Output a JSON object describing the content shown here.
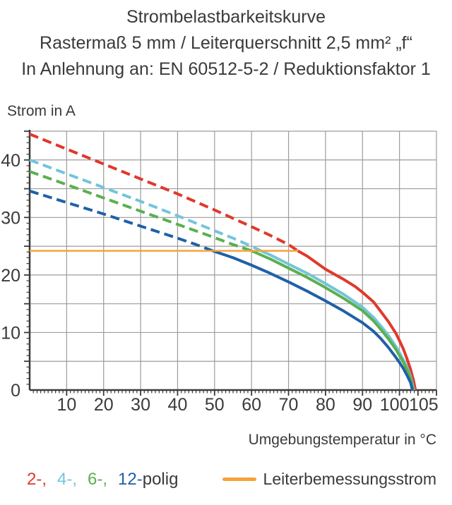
{
  "title": {
    "line1": "Strombelastbarkeitskurve",
    "line2": "Rastermaß 5 mm / Leiterquerschnitt 2,5 mm² „f“",
    "line3": "In Anlehnung an: EN 60512-5-2 / Reduktionsfaktor 1"
  },
  "colors": {
    "text": "#3a3a39",
    "grid": "#9c9c9b",
    "axis": "#3a3a39",
    "pole2": "#e0392b",
    "pole4": "#72c5db",
    "pole6": "#5bb04e",
    "pole12": "#1f60a8",
    "rated": "#f5a33a"
  },
  "chart_data": {
    "type": "line",
    "title": "Strombelastbarkeitskurve",
    "xlabel": "Umgebungstemperatur in °C",
    "ylabel": "Strom in A",
    "xlim": [
      0,
      110
    ],
    "ylim": [
      0,
      45
    ],
    "x_grid_step": 10,
    "y_grid_step": 5,
    "x_tick_labels": [
      10,
      20,
      30,
      40,
      50,
      60,
      70,
      80,
      90,
      100,
      105
    ],
    "y_tick_labels": [
      0,
      10,
      20,
      30,
      40
    ],
    "grid": true,
    "legend_position": "bottom",
    "series": [
      {
        "name": "2-polig",
        "color": "#e0392b",
        "width": 4,
        "segments": [
          {
            "style": "dashed",
            "points": [
              [
                0,
                44.5
              ],
              [
                10,
                41.9
              ],
              [
                20,
                39.3
              ],
              [
                30,
                36.7
              ],
              [
                40,
                34.1
              ],
              [
                50,
                31.3
              ],
              [
                60,
                28.4
              ],
              [
                65,
                26.9
              ],
              [
                70,
                25.3
              ],
              [
                72.5,
                24.2
              ]
            ]
          },
          {
            "style": "solid",
            "points": [
              [
                72.5,
                24.2
              ],
              [
                75,
                23.3
              ],
              [
                80,
                21.0
              ],
              [
                85,
                19.2
              ],
              [
                88,
                18.0
              ],
              [
                90,
                17.0
              ],
              [
                93,
                15.3
              ],
              [
                95,
                13.6
              ],
              [
                97,
                11.9
              ],
              [
                99,
                9.9
              ],
              [
                100,
                8.6
              ],
              [
                101,
                7.2
              ],
              [
                102,
                5.5
              ],
              [
                103,
                3.6
              ],
              [
                103.8,
                1.7
              ],
              [
                104.3,
                0
              ]
            ]
          }
        ]
      },
      {
        "name": "4-polig",
        "color": "#72c5db",
        "width": 4,
        "segments": [
          {
            "style": "dashed",
            "points": [
              [
                0,
                40.0
              ],
              [
                10,
                37.6
              ],
              [
                20,
                35.2
              ],
              [
                30,
                32.8
              ],
              [
                40,
                30.3
              ],
              [
                50,
                27.7
              ],
              [
                55,
                26.4
              ],
              [
                60,
                25.0
              ],
              [
                62.5,
                24.2
              ]
            ]
          },
          {
            "style": "solid",
            "points": [
              [
                62.5,
                24.2
              ],
              [
                65,
                23.5
              ],
              [
                70,
                21.9
              ],
              [
                75,
                20.3
              ],
              [
                80,
                18.5
              ],
              [
                85,
                16.6
              ],
              [
                90,
                14.4
              ],
              [
                93,
                12.6
              ],
              [
                95,
                11.1
              ],
              [
                97,
                9.5
              ],
              [
                99,
                7.6
              ],
              [
                100,
                6.5
              ],
              [
                101,
                5.3
              ],
              [
                102,
                4.0
              ],
              [
                103,
                2.4
              ],
              [
                103.9,
                0
              ]
            ]
          }
        ]
      },
      {
        "name": "6-polig",
        "color": "#5bb04e",
        "width": 4,
        "segments": [
          {
            "style": "dashed",
            "points": [
              [
                0,
                38.0
              ],
              [
                10,
                35.7
              ],
              [
                20,
                33.4
              ],
              [
                30,
                31.1
              ],
              [
                40,
                28.8
              ],
              [
                50,
                26.5
              ],
              [
                55,
                25.3
              ],
              [
                60,
                24.2
              ]
            ]
          },
          {
            "style": "solid",
            "points": [
              [
                60,
                24.2
              ],
              [
                65,
                22.8
              ],
              [
                70,
                21.2
              ],
              [
                75,
                19.6
              ],
              [
                80,
                17.8
              ],
              [
                85,
                15.9
              ],
              [
                90,
                13.8
              ],
              [
                93,
                12.0
              ],
              [
                95,
                10.5
              ],
              [
                97,
                8.9
              ],
              [
                99,
                7.1
              ],
              [
                100,
                6.0
              ],
              [
                101,
                4.9
              ],
              [
                102,
                3.6
              ],
              [
                103,
                2.1
              ],
              [
                103.7,
                0
              ]
            ]
          }
        ]
      },
      {
        "name": "12-polig",
        "color": "#1f60a8",
        "width": 4,
        "segments": [
          {
            "style": "dashed",
            "points": [
              [
                0,
                34.6
              ],
              [
                10,
                32.6
              ],
              [
                20,
                30.6
              ],
              [
                30,
                28.5
              ],
              [
                40,
                26.4
              ],
              [
                45,
                25.3
              ],
              [
                49.5,
                24.2
              ]
            ]
          },
          {
            "style": "solid",
            "points": [
              [
                49.5,
                24.2
              ],
              [
                55,
                23.0
              ],
              [
                60,
                21.7
              ],
              [
                65,
                20.3
              ],
              [
                70,
                18.8
              ],
              [
                75,
                17.2
              ],
              [
                80,
                15.5
              ],
              [
                85,
                13.7
              ],
              [
                90,
                11.7
              ],
              [
                93,
                10.2
              ],
              [
                95,
                8.9
              ],
              [
                97,
                7.4
              ],
              [
                99,
                5.7
              ],
              [
                100,
                4.8
              ],
              [
                101,
                3.8
              ],
              [
                102,
                2.6
              ],
              [
                103,
                1.3
              ],
              [
                103.5,
                0
              ]
            ]
          }
        ]
      },
      {
        "name": "Leiterbemessungsstrom",
        "color": "#f5a33a",
        "width": 2.5,
        "segments": [
          {
            "style": "solid",
            "points": [
              [
                0,
                24.2
              ],
              [
                72.5,
                24.2
              ]
            ]
          }
        ]
      }
    ]
  },
  "legend": {
    "poles": [
      {
        "label": "2-,",
        "color": "#e0392b"
      },
      {
        "label": "4-,",
        "color": "#72c5db"
      },
      {
        "label": "6-,",
        "color": "#5bb04e"
      },
      {
        "label": "12-",
        "color": "#1f60a8"
      }
    ],
    "suffix": "polig",
    "rated_label": "Leiterbemessungsstrom",
    "rated_color": "#f5a33a"
  }
}
